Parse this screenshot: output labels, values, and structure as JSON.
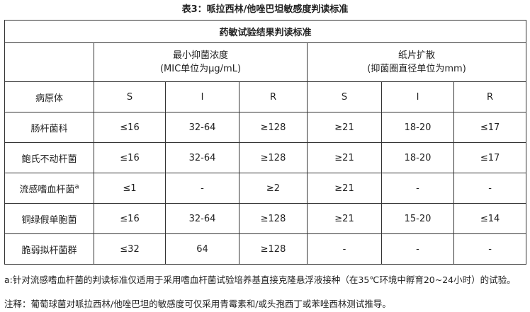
{
  "title": "表3：哌拉西林/他唑巴坦敏感度判读标准",
  "table": {
    "caption": "药敏试验结果判读标准",
    "group_mic": {
      "line1": "最小抑菌浓度",
      "line2": "(MIC单位为μg/mL)"
    },
    "group_disk": {
      "line1": "纸片扩散",
      "line2": "(抑菌圈直径单位为mm)"
    },
    "columns": [
      "病原体",
      "S",
      "I",
      "R",
      "S",
      "I",
      "R"
    ],
    "rows": [
      {
        "name": "肠杆菌科",
        "sup": "",
        "cells": [
          "≤16",
          "32-64",
          "≥128",
          "≥21",
          "18-20",
          "≤17"
        ]
      },
      {
        "name": "鲍氏不动杆菌",
        "sup": "",
        "cells": [
          "≤16",
          "32-64",
          "≥128",
          "≥21",
          "18-20",
          "≤17"
        ]
      },
      {
        "name": "流感嗜血杆菌",
        "sup": "a",
        "cells": [
          "≤1",
          "-",
          "≥2",
          "≥21",
          "-",
          "-"
        ]
      },
      {
        "name": "铜绿假单胞菌",
        "sup": "",
        "cells": [
          "≤16",
          "32-64",
          "≥128",
          "≥21",
          "15-20",
          "≤14"
        ]
      },
      {
        "name": "脆弱拟杆菌群",
        "sup": "",
        "cells": [
          "≤32",
          "64",
          "≥128",
          "-",
          "-",
          "-"
        ]
      }
    ]
  },
  "footnote_a": "a:针对流感嗜血杆菌的判读标准仅适用于采用嗜血杆菌试验培养基直接克隆悬浮液接种（在35℃环境中孵育20~24小时）的试验。",
  "note": "注释：葡萄球菌对哌拉西林/他唑巴坦的敏感度可仅采用青霉素和/或头孢西丁或苯唑西林测试推导。"
}
